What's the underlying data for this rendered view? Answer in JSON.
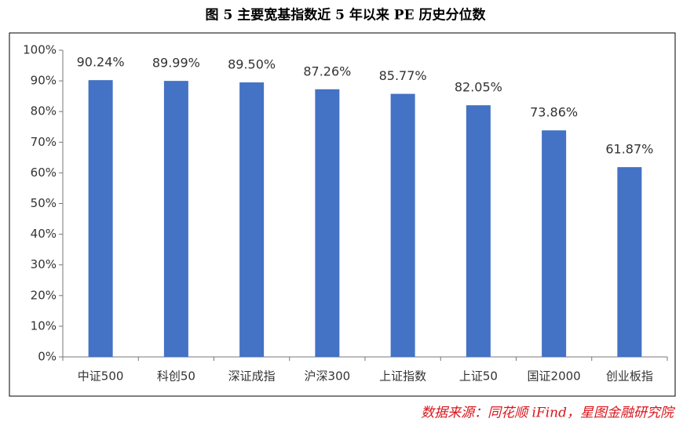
{
  "chart_data": {
    "type": "bar",
    "title": "图 5 主要宽基指数近 5 年以来 PE 历史分位数",
    "source": "数据来源：同花顺 iFind，星图金融研究院",
    "categories": [
      "中证500",
      "科创50",
      "深证成指",
      "沪深300",
      "上证指数",
      "上证50",
      "国证2000",
      "创业板指"
    ],
    "values": [
      90.24,
      89.99,
      89.5,
      87.26,
      85.77,
      82.05,
      73.86,
      61.87
    ],
    "value_labels": [
      "90.24%",
      "89.99%",
      "89.50%",
      "87.26%",
      "85.77%",
      "82.05%",
      "73.86%",
      "61.87%"
    ],
    "color": "#4472c4",
    "ylim": [
      0,
      100
    ],
    "yticks": [
      {
        "value": 0,
        "label": "0%"
      },
      {
        "value": 10,
        "label": "10%"
      },
      {
        "value": 20,
        "label": "20%"
      },
      {
        "value": 30,
        "label": "30%"
      },
      {
        "value": 40,
        "label": "40%"
      },
      {
        "value": 50,
        "label": "50%"
      },
      {
        "value": 60,
        "label": "60%"
      },
      {
        "value": 70,
        "label": "70%"
      },
      {
        "value": 80,
        "label": "80%"
      },
      {
        "value": 90,
        "label": "90%"
      },
      {
        "value": 100,
        "label": "100%"
      }
    ],
    "grid": false
  }
}
